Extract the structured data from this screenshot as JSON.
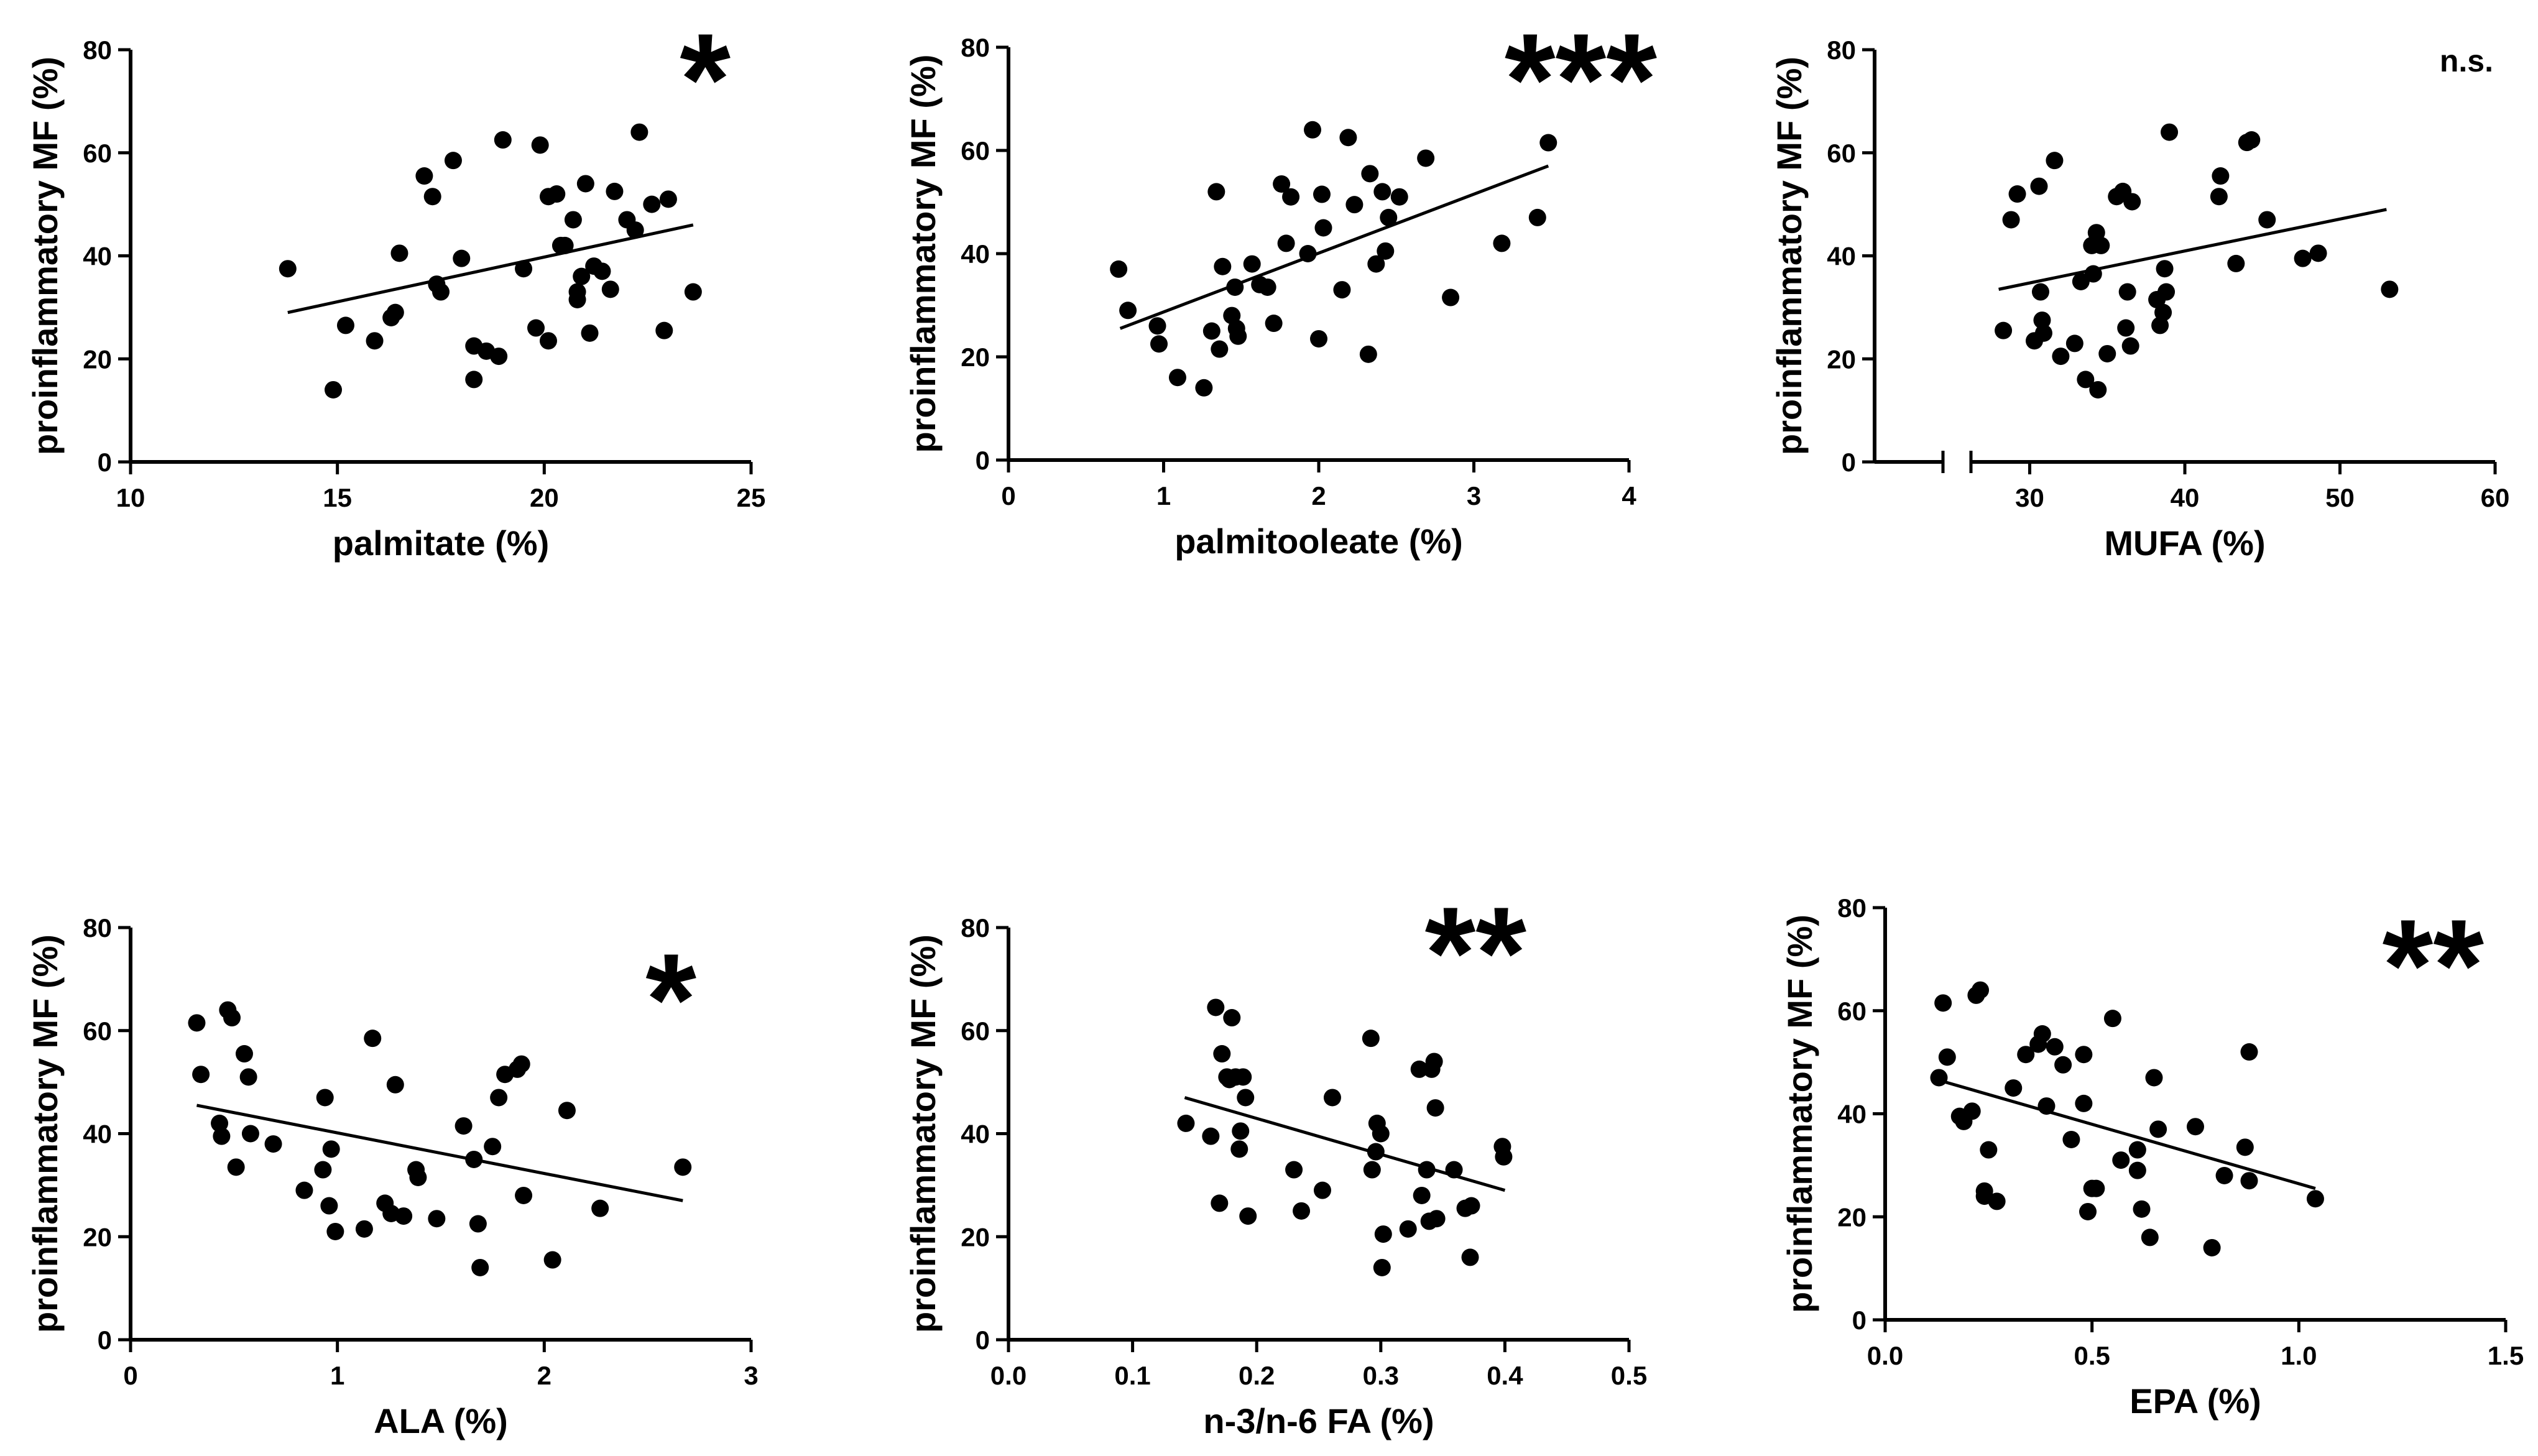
{
  "chart_data": [
    {
      "type": "scatter",
      "xlabel": "palmitate (%)",
      "ylabel": "proinflammatory MF (%)",
      "xlim": [
        10,
        25
      ],
      "ylim": [
        0,
        80
      ],
      "xticks": [
        "10",
        "15",
        "20",
        "25"
      ],
      "yticks": [
        "0",
        "20",
        "40",
        "60",
        "80"
      ],
      "significance": "*",
      "fit": {
        "x": [
          13.8,
          23.6
        ],
        "y": [
          29,
          46
        ]
      },
      "points": [
        [
          13.8,
          37.5
        ],
        [
          14.9,
          14
        ],
        [
          15.2,
          26.5
        ],
        [
          15.9,
          23.5
        ],
        [
          16.3,
          28
        ],
        [
          16.4,
          29
        ],
        [
          16.5,
          40.5
        ],
        [
          17.1,
          55.5
        ],
        [
          17.3,
          51.5
        ],
        [
          17.4,
          34.5
        ],
        [
          17.5,
          33
        ],
        [
          17.8,
          58.5
        ],
        [
          18.0,
          39.5
        ],
        [
          18.3,
          16
        ],
        [
          18.3,
          22.5
        ],
        [
          18.6,
          21.5
        ],
        [
          18.9,
          20.5
        ],
        [
          19.0,
          62.5
        ],
        [
          19.5,
          37.5
        ],
        [
          19.8,
          26
        ],
        [
          19.9,
          61.5
        ],
        [
          20.1,
          51.5
        ],
        [
          20.1,
          23.5
        ],
        [
          20.3,
          52
        ],
        [
          20.4,
          42
        ],
        [
          20.5,
          42
        ],
        [
          20.7,
          47
        ],
        [
          20.8,
          31.5
        ],
        [
          20.8,
          33
        ],
        [
          20.9,
          36
        ],
        [
          21.0,
          54
        ],
        [
          21.1,
          25
        ],
        [
          21.2,
          38
        ],
        [
          21.4,
          37
        ],
        [
          21.6,
          33.5
        ],
        [
          21.7,
          52.5
        ],
        [
          22.0,
          47
        ],
        [
          22.2,
          45
        ],
        [
          22.3,
          64
        ],
        [
          22.6,
          50
        ],
        [
          22.9,
          25.5
        ],
        [
          23.0,
          51
        ],
        [
          23.6,
          33
        ]
      ]
    },
    {
      "type": "scatter",
      "xlabel": "palmitooleate (%)",
      "ylabel": "proinflammatory MF (%)",
      "xlim": [
        0,
        4
      ],
      "ylim": [
        0,
        80
      ],
      "xticks": [
        "0",
        "1",
        "2",
        "3",
        "4"
      ],
      "yticks": [
        "0",
        "20",
        "40",
        "60",
        "80"
      ],
      "significance": "***",
      "fit": {
        "x": [
          0.72,
          3.48
        ],
        "y": [
          25.5,
          57
        ]
      },
      "points": [
        [
          0.71,
          37
        ],
        [
          0.77,
          29
        ],
        [
          0.96,
          26
        ],
        [
          0.97,
          22.5
        ],
        [
          1.09,
          16
        ],
        [
          1.26,
          14
        ],
        [
          1.31,
          25
        ],
        [
          1.34,
          52
        ],
        [
          1.36,
          21.5
        ],
        [
          1.38,
          37.5
        ],
        [
          1.44,
          28
        ],
        [
          1.46,
          33.5
        ],
        [
          1.47,
          25.5
        ],
        [
          1.48,
          24
        ],
        [
          1.57,
          38
        ],
        [
          1.62,
          34
        ],
        [
          1.67,
          33.5
        ],
        [
          1.71,
          26.5
        ],
        [
          1.76,
          53.5
        ],
        [
          1.79,
          42
        ],
        [
          1.82,
          51
        ],
        [
          1.93,
          40
        ],
        [
          1.96,
          64
        ],
        [
          2.0,
          23.5
        ],
        [
          2.02,
          51.5
        ],
        [
          2.03,
          45
        ],
        [
          2.15,
          33
        ],
        [
          2.19,
          62.5
        ],
        [
          2.23,
          49.5
        ],
        [
          2.32,
          20.5
        ],
        [
          2.33,
          55.5
        ],
        [
          2.37,
          38
        ],
        [
          2.41,
          52
        ],
        [
          2.43,
          40.5
        ],
        [
          2.45,
          47
        ],
        [
          2.52,
          51
        ],
        [
          2.69,
          58.5
        ],
        [
          2.85,
          31.5
        ],
        [
          3.18,
          42
        ],
        [
          3.41,
          47
        ],
        [
          3.48,
          61.5
        ]
      ]
    },
    {
      "type": "scatter",
      "xlabel": "MUFA (%)",
      "ylabel": "proinflammatory MF (%)",
      "xlim": [
        20,
        60
      ],
      "ylim": [
        0,
        80
      ],
      "xticks": [
        "30",
        "40",
        "50",
        "60"
      ],
      "yticks": [
        "0",
        "20",
        "40",
        "60",
        "80"
      ],
      "axis_break": true,
      "significance": "n.s.",
      "fit": {
        "x": [
          28,
          53
        ],
        "y": [
          33.5,
          49
        ]
      },
      "points": [
        [
          28.3,
          25.5
        ],
        [
          28.8,
          47
        ],
        [
          29.2,
          52
        ],
        [
          30.3,
          23.5
        ],
        [
          30.6,
          53.5
        ],
        [
          30.7,
          33
        ],
        [
          30.8,
          27.5
        ],
        [
          30.9,
          25
        ],
        [
          31.6,
          58.5
        ],
        [
          32.0,
          20.5
        ],
        [
          32.9,
          23
        ],
        [
          33.3,
          35
        ],
        [
          33.6,
          16
        ],
        [
          34.0,
          42
        ],
        [
          34.1,
          36.5
        ],
        [
          34.3,
          44.5
        ],
        [
          34.4,
          14
        ],
        [
          34.6,
          42
        ],
        [
          35.0,
          21
        ],
        [
          35.6,
          51.5
        ],
        [
          36.0,
          52.5
        ],
        [
          36.2,
          26
        ],
        [
          36.3,
          33
        ],
        [
          36.5,
          22.5
        ],
        [
          36.6,
          50.5
        ],
        [
          38.2,
          31.5
        ],
        [
          38.4,
          26.5
        ],
        [
          38.6,
          29
        ],
        [
          38.7,
          37.5
        ],
        [
          38.8,
          33
        ],
        [
          39.0,
          64
        ],
        [
          42.2,
          51.5
        ],
        [
          42.3,
          55.5
        ],
        [
          43.3,
          38.5
        ],
        [
          44.0,
          62
        ],
        [
          44.3,
          62.5
        ],
        [
          45.3,
          47
        ],
        [
          47.6,
          39.5
        ],
        [
          48.6,
          40.5
        ],
        [
          53.2,
          33.5
        ]
      ]
    },
    {
      "type": "scatter",
      "xlabel": "ALA (%)",
      "ylabel": "proinflammatory MF (%)",
      "xlim": [
        0,
        3
      ],
      "ylim": [
        0,
        80
      ],
      "xticks": [
        "0",
        "1",
        "2",
        "3"
      ],
      "yticks": [
        "0",
        "20",
        "40",
        "60",
        "80"
      ],
      "significance": "*",
      "fit": {
        "x": [
          0.32,
          2.67
        ],
        "y": [
          45.5,
          27
        ]
      },
      "points": [
        [
          0.32,
          61.5
        ],
        [
          0.34,
          51.5
        ],
        [
          0.43,
          42
        ],
        [
          0.44,
          39.5
        ],
        [
          0.47,
          64
        ],
        [
          0.49,
          62.5
        ],
        [
          0.51,
          33.5
        ],
        [
          0.55,
          55.5
        ],
        [
          0.57,
          51
        ],
        [
          0.58,
          40
        ],
        [
          0.69,
          38
        ],
        [
          0.84,
          29
        ],
        [
          0.93,
          33
        ],
        [
          0.94,
          47
        ],
        [
          0.96,
          26
        ],
        [
          0.97,
          37
        ],
        [
          0.99,
          21
        ],
        [
          1.13,
          21.5
        ],
        [
          1.17,
          58.5
        ],
        [
          1.23,
          26.5
        ],
        [
          1.26,
          24.5
        ],
        [
          1.28,
          49.5
        ],
        [
          1.32,
          24
        ],
        [
          1.38,
          33
        ],
        [
          1.39,
          31.5
        ],
        [
          1.48,
          23.5
        ],
        [
          1.61,
          41.5
        ],
        [
          1.66,
          35
        ],
        [
          1.68,
          22.5
        ],
        [
          1.69,
          14
        ],
        [
          1.75,
          37.5
        ],
        [
          1.78,
          47
        ],
        [
          1.81,
          51.5
        ],
        [
          1.87,
          52.5
        ],
        [
          1.89,
          53.5
        ],
        [
          1.9,
          28
        ],
        [
          2.04,
          15.5
        ],
        [
          2.11,
          44.5
        ],
        [
          2.27,
          25.5
        ],
        [
          2.67,
          33.5
        ]
      ]
    },
    {
      "type": "scatter",
      "xlabel": "n-3/n-6 FA (%)",
      "ylabel": "proinflammatory MF (%)",
      "xlim": [
        0.0,
        0.5
      ],
      "ylim": [
        0,
        80
      ],
      "xticks": [
        "0.0",
        "0.1",
        "0.2",
        "0.3",
        "0.4",
        "0.5"
      ],
      "yticks": [
        "0",
        "20",
        "40",
        "60",
        "80"
      ],
      "significance": "**",
      "fit": {
        "x": [
          0.142,
          0.4
        ],
        "y": [
          47,
          29
        ]
      },
      "points": [
        [
          0.143,
          42
        ],
        [
          0.163,
          39.5
        ],
        [
          0.167,
          64.5
        ],
        [
          0.17,
          26.5
        ],
        [
          0.172,
          55.5
        ],
        [
          0.176,
          51
        ],
        [
          0.178,
          50.5
        ],
        [
          0.18,
          62.5
        ],
        [
          0.183,
          51
        ],
        [
          0.186,
          37
        ],
        [
          0.187,
          40.5
        ],
        [
          0.189,
          51
        ],
        [
          0.191,
          47
        ],
        [
          0.193,
          24
        ],
        [
          0.23,
          33
        ],
        [
          0.236,
          25
        ],
        [
          0.253,
          29
        ],
        [
          0.261,
          47
        ],
        [
          0.292,
          58.5
        ],
        [
          0.293,
          33
        ],
        [
          0.296,
          36.5
        ],
        [
          0.297,
          42
        ],
        [
          0.3,
          40
        ],
        [
          0.301,
          14
        ],
        [
          0.302,
          20.5
        ],
        [
          0.322,
          21.5
        ],
        [
          0.331,
          52.5
        ],
        [
          0.333,
          28
        ],
        [
          0.337,
          33
        ],
        [
          0.339,
          23
        ],
        [
          0.341,
          52.5
        ],
        [
          0.343,
          54
        ],
        [
          0.345,
          23.5
        ],
        [
          0.344,
          45
        ],
        [
          0.359,
          33
        ],
        [
          0.368,
          25.5
        ],
        [
          0.372,
          16
        ],
        [
          0.373,
          26
        ],
        [
          0.398,
          37.5
        ],
        [
          0.399,
          35.5
        ]
      ]
    },
    {
      "type": "scatter",
      "xlabel": "EPA (%)",
      "ylabel": "proinflammatory MF (%)",
      "xlim": [
        0.0,
        1.5
      ],
      "ylim": [
        0,
        80
      ],
      "xticks": [
        "0.0",
        "0.5",
        "1.0",
        "1.5"
      ],
      "yticks": [
        "0",
        "20",
        "40",
        "60",
        "80"
      ],
      "significance": "**",
      "fit": {
        "x": [
          0.13,
          1.04
        ],
        "y": [
          46.5,
          25.5
        ]
      },
      "points": [
        [
          0.13,
          47
        ],
        [
          0.14,
          61.5
        ],
        [
          0.15,
          51
        ],
        [
          0.18,
          39.5
        ],
        [
          0.19,
          38.5
        ],
        [
          0.21,
          40.5
        ],
        [
          0.22,
          63
        ],
        [
          0.23,
          64
        ],
        [
          0.24,
          25
        ],
        [
          0.24,
          24
        ],
        [
          0.25,
          33
        ],
        [
          0.27,
          23
        ],
        [
          0.31,
          45
        ],
        [
          0.34,
          51.5
        ],
        [
          0.37,
          53.5
        ],
        [
          0.38,
          55.5
        ],
        [
          0.39,
          41.5
        ],
        [
          0.41,
          53
        ],
        [
          0.43,
          49.5
        ],
        [
          0.45,
          35
        ],
        [
          0.48,
          42
        ],
        [
          0.48,
          51.5
        ],
        [
          0.49,
          21
        ],
        [
          0.5,
          25.5
        ],
        [
          0.51,
          25.5
        ],
        [
          0.55,
          58.5
        ],
        [
          0.57,
          31
        ],
        [
          0.61,
          29
        ],
        [
          0.61,
          33
        ],
        [
          0.62,
          21.5
        ],
        [
          0.64,
          16
        ],
        [
          0.65,
          47
        ],
        [
          0.66,
          37
        ],
        [
          0.75,
          37.5
        ],
        [
          0.79,
          14
        ],
        [
          0.82,
          28
        ],
        [
          0.87,
          33.5
        ],
        [
          0.88,
          52
        ],
        [
          0.88,
          27
        ],
        [
          1.04,
          23.5
        ]
      ]
    }
  ]
}
